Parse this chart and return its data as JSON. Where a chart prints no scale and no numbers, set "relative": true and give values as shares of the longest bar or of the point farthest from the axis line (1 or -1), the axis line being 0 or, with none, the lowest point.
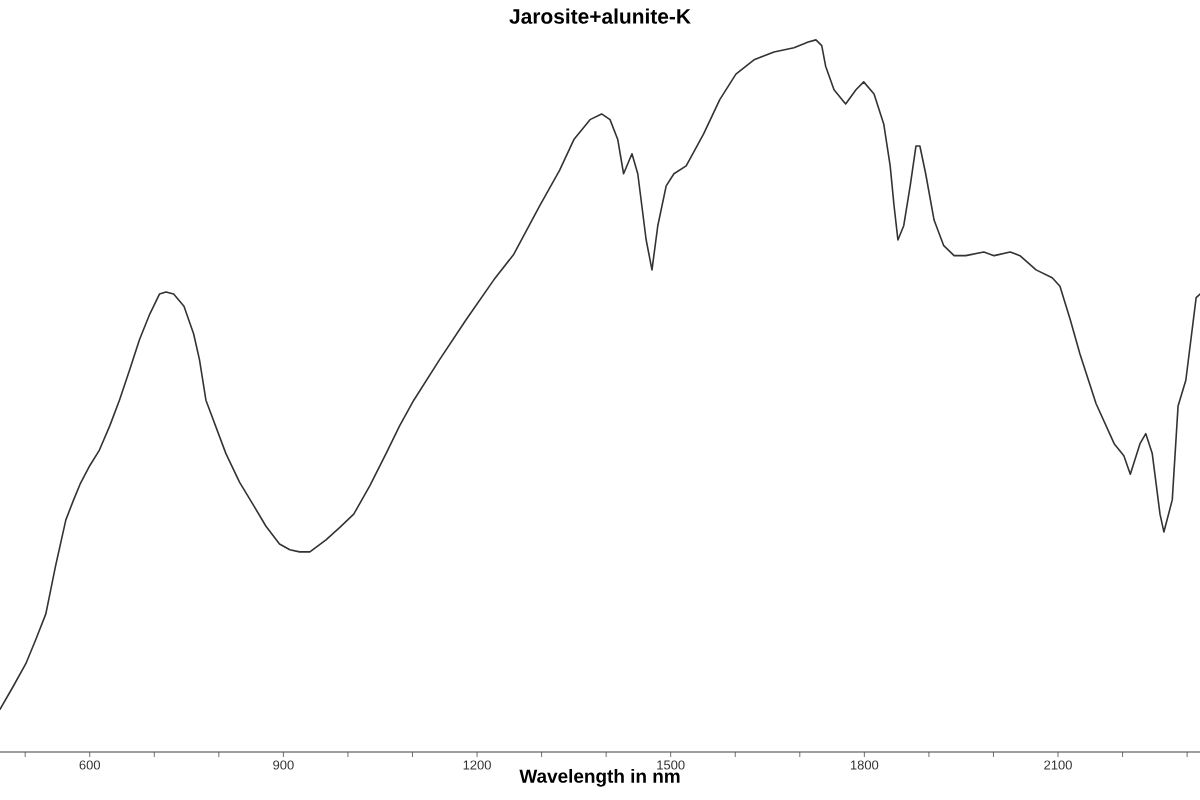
{
  "chart_data": {
    "type": "line",
    "title": "Jarosite+alunite-K",
    "xlabel": "Wavelength in nm",
    "relative": true,
    "color": "#333333",
    "x": [
      461,
      482,
      501,
      516,
      532,
      547,
      563,
      575,
      585,
      600,
      615,
      631,
      646,
      662,
      677,
      693,
      708,
      718,
      730,
      746,
      761,
      770,
      780,
      811,
      832,
      854,
      873,
      894,
      910,
      925,
      941,
      966,
      987,
      1009,
      1034,
      1059,
      1080,
      1102,
      1142,
      1183,
      1226,
      1257,
      1297,
      1328,
      1350,
      1375,
      1393,
      1406,
      1418,
      1427,
      1440,
      1449,
      1462,
      1471,
      1480,
      1493,
      1505,
      1524,
      1551,
      1576,
      1601,
      1629,
      1660,
      1691,
      1713,
      1725,
      1734,
      1740,
      1753,
      1771,
      1787,
      1799,
      1815,
      1830,
      1840,
      1846,
      1852,
      1861,
      1871,
      1880,
      1886,
      1895,
      1908,
      1923,
      1939,
      1957,
      1985,
      2001,
      2026,
      2041,
      2066,
      2091,
      2103,
      2119,
      2134,
      2159,
      2187,
      2202,
      2212,
      2227,
      2236,
      2246,
      2258,
      2264,
      2277,
      2286,
      2298,
      2314,
      2320
    ],
    "values": [
      0.06,
      0.093,
      0.124,
      0.157,
      0.194,
      0.261,
      0.326,
      0.354,
      0.376,
      0.402,
      0.424,
      0.458,
      0.494,
      0.537,
      0.579,
      0.615,
      0.643,
      0.646,
      0.643,
      0.626,
      0.587,
      0.551,
      0.494,
      0.419,
      0.379,
      0.346,
      0.317,
      0.292,
      0.284,
      0.281,
      0.281,
      0.298,
      0.315,
      0.334,
      0.374,
      0.419,
      0.458,
      0.494,
      0.551,
      0.607,
      0.663,
      0.699,
      0.767,
      0.817,
      0.86,
      0.888,
      0.896,
      0.888,
      0.86,
      0.812,
      0.84,
      0.812,
      0.719,
      0.677,
      0.739,
      0.795,
      0.812,
      0.823,
      0.868,
      0.916,
      0.952,
      0.972,
      0.983,
      0.989,
      0.997,
      1.0,
      0.992,
      0.963,
      0.93,
      0.91,
      0.93,
      0.941,
      0.924,
      0.882,
      0.823,
      0.767,
      0.719,
      0.739,
      0.795,
      0.851,
      0.851,
      0.812,
      0.747,
      0.711,
      0.697,
      0.697,
      0.702,
      0.697,
      0.702,
      0.697,
      0.677,
      0.666,
      0.654,
      0.607,
      0.559,
      0.489,
      0.433,
      0.416,
      0.39,
      0.433,
      0.447,
      0.419,
      0.334,
      0.309,
      0.354,
      0.486,
      0.522,
      0.638,
      0.643
    ],
    "xlim": [
      461,
      2320
    ],
    "xticks": [
      {
        "value": 500,
        "label": null
      },
      600,
      {
        "value": 700,
        "label": null
      },
      {
        "value": 800,
        "label": null
      },
      900,
      {
        "value": 1000,
        "label": null
      },
      {
        "value": 1100,
        "label": null
      },
      1200,
      {
        "value": 1300,
        "label": null
      },
      {
        "value": 1400,
        "label": null
      },
      1500,
      {
        "value": 1600,
        "label": null
      },
      {
        "value": 1700,
        "label": null
      },
      1800,
      {
        "value": 1900,
        "label": null
      },
      {
        "value": 2000,
        "label": null
      },
      2100,
      {
        "value": 2200,
        "label": null
      },
      {
        "value": 2300,
        "label": null
      }
    ]
  }
}
